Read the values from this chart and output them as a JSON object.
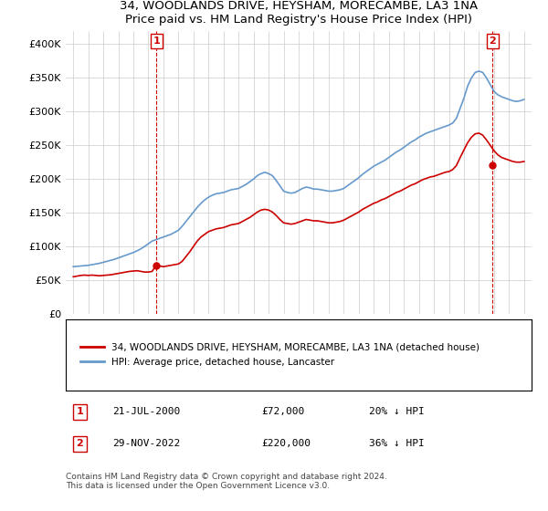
{
  "title": "34, WOODLANDS DRIVE, HEYSHAM, MORECAMBE, LA3 1NA",
  "subtitle": "Price paid vs. HM Land Registry's House Price Index (HPI)",
  "legend_line1": "34, WOODLANDS DRIVE, HEYSHAM, MORECAMBE, LA3 1NA (detached house)",
  "legend_line2": "HPI: Average price, detached house, Lancaster",
  "annotation1_label": "1",
  "annotation1_date": "21-JUL-2000",
  "annotation1_price": "£72,000",
  "annotation1_hpi": "20% ↓ HPI",
  "annotation2_label": "2",
  "annotation2_date": "29-NOV-2022",
  "annotation2_price": "£220,000",
  "annotation2_hpi": "36% ↓ HPI",
  "footnote": "Contains HM Land Registry data © Crown copyright and database right 2024.\nThis data is licensed under the Open Government Licence v3.0.",
  "hpi_color": "#6699cc",
  "price_color": "#cc0000",
  "annotation_color": "#cc0000",
  "marker1_x": 2000.54,
  "marker1_y": 72000,
  "marker2_x": 2022.91,
  "marker2_y": 220000,
  "ylim": [
    0,
    420000
  ],
  "xlim": [
    1994.5,
    2025.5
  ],
  "yticks": [
    0,
    50000,
    100000,
    150000,
    200000,
    250000,
    300000,
    350000,
    400000
  ],
  "ytick_labels": [
    "£0",
    "£50K",
    "£100K",
    "£150K",
    "£200K",
    "£250K",
    "£300K",
    "£350K",
    "£400K"
  ],
  "xticks": [
    1995,
    1996,
    1997,
    1998,
    1999,
    2000,
    2001,
    2002,
    2003,
    2004,
    2005,
    2006,
    2007,
    2008,
    2009,
    2010,
    2011,
    2012,
    2013,
    2014,
    2015,
    2016,
    2017,
    2018,
    2019,
    2020,
    2021,
    2022,
    2023,
    2024,
    2025
  ],
  "hpi_x": [
    1995.0,
    1995.25,
    1995.5,
    1995.75,
    1996.0,
    1996.25,
    1996.5,
    1996.75,
    1997.0,
    1997.25,
    1997.5,
    1997.75,
    1998.0,
    1998.25,
    1998.5,
    1998.75,
    1999.0,
    1999.25,
    1999.5,
    1999.75,
    2000.0,
    2000.25,
    2000.5,
    2000.75,
    2001.0,
    2001.25,
    2001.5,
    2001.75,
    2002.0,
    2002.25,
    2002.5,
    2002.75,
    2003.0,
    2003.25,
    2003.5,
    2003.75,
    2004.0,
    2004.25,
    2004.5,
    2004.75,
    2005.0,
    2005.25,
    2005.5,
    2005.75,
    2006.0,
    2006.25,
    2006.5,
    2006.75,
    2007.0,
    2007.25,
    2007.5,
    2007.75,
    2008.0,
    2008.25,
    2008.5,
    2008.75,
    2009.0,
    2009.25,
    2009.5,
    2009.75,
    2010.0,
    2010.25,
    2010.5,
    2010.75,
    2011.0,
    2011.25,
    2011.5,
    2011.75,
    2012.0,
    2012.25,
    2012.5,
    2012.75,
    2013.0,
    2013.25,
    2013.5,
    2013.75,
    2014.0,
    2014.25,
    2014.5,
    2014.75,
    2015.0,
    2015.25,
    2015.5,
    2015.75,
    2016.0,
    2016.25,
    2016.5,
    2016.75,
    2017.0,
    2017.25,
    2017.5,
    2017.75,
    2018.0,
    2018.25,
    2018.5,
    2018.75,
    2019.0,
    2019.25,
    2019.5,
    2019.75,
    2020.0,
    2020.25,
    2020.5,
    2020.75,
    2021.0,
    2021.25,
    2021.5,
    2021.75,
    2022.0,
    2022.25,
    2022.5,
    2022.75,
    2023.0,
    2023.25,
    2023.5,
    2023.75,
    2024.0,
    2024.25,
    2024.5,
    2024.75,
    2025.0
  ],
  "hpi_y": [
    70000,
    70500,
    71000,
    71500,
    72000,
    73000,
    74000,
    75000,
    76500,
    78000,
    79500,
    81000,
    83000,
    85000,
    87000,
    89000,
    91000,
    93500,
    96500,
    100000,
    104000,
    108000,
    110000,
    112000,
    114000,
    116000,
    118000,
    121000,
    124000,
    130000,
    137000,
    144000,
    151000,
    158000,
    164000,
    169000,
    173000,
    176000,
    178000,
    179000,
    180000,
    182000,
    184000,
    185000,
    186000,
    189000,
    192000,
    196000,
    200000,
    205000,
    208000,
    210000,
    208000,
    205000,
    198000,
    190000,
    182000,
    180000,
    179000,
    180000,
    183000,
    186000,
    188000,
    187000,
    185000,
    185000,
    184000,
    183000,
    182000,
    182000,
    183000,
    184000,
    186000,
    190000,
    194000,
    198000,
    202000,
    207000,
    211000,
    215000,
    219000,
    222000,
    225000,
    228000,
    232000,
    236000,
    240000,
    243000,
    247000,
    251000,
    255000,
    258000,
    262000,
    265000,
    268000,
    270000,
    272000,
    274000,
    276000,
    278000,
    280000,
    283000,
    290000,
    305000,
    320000,
    338000,
    350000,
    358000,
    360000,
    358000,
    350000,
    340000,
    330000,
    325000,
    322000,
    320000,
    318000,
    316000,
    315000,
    316000,
    318000
  ],
  "price_x": [
    1995.0,
    1995.25,
    1995.5,
    1995.75,
    1996.0,
    1996.25,
    1996.5,
    1996.75,
    1997.0,
    1997.25,
    1997.5,
    1997.75,
    1998.0,
    1998.25,
    1998.5,
    1998.75,
    1999.0,
    1999.25,
    1999.5,
    1999.75,
    2000.0,
    2000.25,
    2000.5,
    2000.75,
    2001.0,
    2001.25,
    2001.5,
    2001.75,
    2002.0,
    2002.25,
    2002.5,
    2002.75,
    2003.0,
    2003.25,
    2003.5,
    2003.75,
    2004.0,
    2004.25,
    2004.5,
    2004.75,
    2005.0,
    2005.25,
    2005.5,
    2005.75,
    2006.0,
    2006.25,
    2006.5,
    2006.75,
    2007.0,
    2007.25,
    2007.5,
    2007.75,
    2008.0,
    2008.25,
    2008.5,
    2008.75,
    2009.0,
    2009.25,
    2009.5,
    2009.75,
    2010.0,
    2010.25,
    2010.5,
    2010.75,
    2011.0,
    2011.25,
    2011.5,
    2011.75,
    2012.0,
    2012.25,
    2012.5,
    2012.75,
    2013.0,
    2013.25,
    2013.5,
    2013.75,
    2014.0,
    2014.25,
    2014.5,
    2014.75,
    2015.0,
    2015.25,
    2015.5,
    2015.75,
    2016.0,
    2016.25,
    2016.5,
    2016.75,
    2017.0,
    2017.25,
    2017.5,
    2017.75,
    2018.0,
    2018.25,
    2018.5,
    2018.75,
    2019.0,
    2019.25,
    2019.5,
    2019.75,
    2020.0,
    2020.25,
    2020.5,
    2020.75,
    2021.0,
    2021.25,
    2021.5,
    2021.75,
    2022.0,
    2022.25,
    2022.5,
    2022.75,
    2023.0,
    2023.25,
    2023.5,
    2023.75,
    2024.0,
    2024.25,
    2024.5,
    2024.75,
    2025.0
  ],
  "price_y": [
    55000,
    56000,
    57000,
    57500,
    57000,
    57500,
    57000,
    56500,
    57000,
    57500,
    58000,
    59000,
    60000,
    61000,
    62000,
    63000,
    63500,
    64000,
    63000,
    62000,
    62000,
    63000,
    72000,
    71000,
    70000,
    71000,
    72000,
    73000,
    74000,
    78000,
    85000,
    92000,
    100000,
    108000,
    114000,
    118000,
    122000,
    124000,
    126000,
    127000,
    128000,
    130000,
    132000,
    133000,
    134000,
    137000,
    140000,
    143000,
    147000,
    151000,
    154000,
    155000,
    154000,
    151000,
    146000,
    140000,
    135000,
    134000,
    133000,
    134000,
    136000,
    138000,
    140000,
    139000,
    138000,
    138000,
    137000,
    136000,
    135000,
    135000,
    136000,
    137000,
    139000,
    142000,
    145000,
    148000,
    151000,
    155000,
    158000,
    161000,
    164000,
    166000,
    169000,
    171000,
    174000,
    177000,
    180000,
    182000,
    185000,
    188000,
    191000,
    193000,
    196000,
    199000,
    201000,
    203000,
    204000,
    206000,
    208000,
    210000,
    211000,
    214000,
    220000,
    232000,
    243000,
    254000,
    262000,
    267000,
    268000,
    265000,
    258000,
    250000,
    242000,
    236000,
    232000,
    230000,
    228000,
    226000,
    225000,
    225000,
    226000
  ]
}
